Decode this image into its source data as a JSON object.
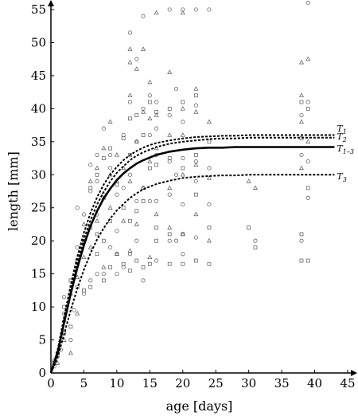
{
  "chart_data": {
    "type": "scatter",
    "title": "",
    "xlabel": "age [days]",
    "ylabel": "length [mm]",
    "xlim": [
      0,
      45
    ],
    "ylim": [
      0,
      55
    ],
    "xticks": [
      0,
      5,
      10,
      15,
      20,
      25,
      30,
      35,
      40,
      45
    ],
    "yticks": [
      0,
      5,
      10,
      15,
      20,
      25,
      30,
      35,
      40,
      45,
      50,
      55
    ],
    "grid": false,
    "legend": "none",
    "curves": [
      {
        "name": "T1",
        "asymptote": 36.0,
        "style": "dashed"
      },
      {
        "name": "T2",
        "asymptote": 35.6,
        "style": "dashed"
      },
      {
        "name": "T1-3",
        "asymptote": 34.2,
        "style": "solid"
      },
      {
        "name": "T3",
        "asymptote": 30.0,
        "style": "dashed"
      }
    ],
    "curve_points": {
      "x": [
        0,
        1,
        2,
        3,
        4,
        5,
        6,
        7,
        8,
        9,
        10,
        11,
        12,
        13,
        14,
        15,
        16,
        18,
        20,
        22,
        24,
        26,
        28,
        30,
        32,
        34,
        36,
        38,
        40,
        43
      ],
      "T1": [
        0,
        3.4,
        8.5,
        13.3,
        17.6,
        21.2,
        24.2,
        26.6,
        28.5,
        30.0,
        31.2,
        32.2,
        33.0,
        33.6,
        34.1,
        34.5,
        34.8,
        35.2,
        35.5,
        35.7,
        35.8,
        35.9,
        35.9,
        36.0,
        36.0,
        36.0,
        36.0,
        36.0,
        36.0,
        36.0
      ],
      "T2": [
        0,
        3.1,
        8.0,
        12.6,
        16.7,
        20.2,
        23.1,
        25.5,
        27.4,
        29.0,
        30.3,
        31.3,
        32.2,
        32.9,
        33.4,
        33.8,
        34.2,
        34.7,
        35.0,
        35.2,
        35.4,
        35.5,
        35.5,
        35.6,
        35.6,
        35.6,
        35.6,
        35.6,
        35.6,
        35.6
      ],
      "T1-3": [
        0,
        3.0,
        7.6,
        12.0,
        15.9,
        19.3,
        22.2,
        24.5,
        26.4,
        27.9,
        29.2,
        30.2,
        31.0,
        31.7,
        32.2,
        32.6,
        33.0,
        33.5,
        33.8,
        34.0,
        34.1,
        34.1,
        34.2,
        34.2,
        34.2,
        34.2,
        34.2,
        34.2,
        34.2,
        34.2
      ],
      "T3": [
        0,
        2.3,
        5.9,
        9.5,
        12.8,
        15.6,
        18.1,
        20.2,
        21.9,
        23.4,
        24.6,
        25.6,
        26.5,
        27.2,
        27.8,
        28.2,
        28.6,
        29.1,
        29.5,
        29.7,
        29.8,
        29.9,
        29.9,
        30.0,
        30.0,
        30.0,
        30.0,
        30.0,
        30.0,
        30.0
      ]
    },
    "series": [
      {
        "marker": "circle",
        "points": [
          [
            0.5,
            1
          ],
          [
            1,
            2.5
          ],
          [
            1.5,
            3.5
          ],
          [
            2,
            9
          ],
          [
            2,
            11.5
          ],
          [
            3,
            5
          ],
          [
            3.5,
            9.5
          ],
          [
            4,
            19
          ],
          [
            4,
            25
          ],
          [
            5,
            12
          ],
          [
            5,
            24
          ],
          [
            6,
            14
          ],
          [
            6,
            27.5
          ],
          [
            6,
            31.5
          ],
          [
            7,
            15
          ],
          [
            7,
            24
          ],
          [
            7,
            29
          ],
          [
            7,
            33
          ],
          [
            8,
            15
          ],
          [
            8,
            27
          ],
          [
            8,
            37
          ],
          [
            9,
            19
          ],
          [
            9,
            31
          ],
          [
            9,
            33
          ],
          [
            10,
            15
          ],
          [
            10,
            21.5
          ],
          [
            10,
            27
          ],
          [
            11,
            16
          ],
          [
            11,
            28
          ],
          [
            11,
            36
          ],
          [
            12,
            18
          ],
          [
            12,
            30
          ],
          [
            12,
            41
          ],
          [
            12,
            51.5
          ],
          [
            13,
            20
          ],
          [
            13,
            26
          ],
          [
            13,
            35
          ],
          [
            13,
            47.5
          ],
          [
            14,
            14
          ],
          [
            14,
            28
          ],
          [
            14,
            40
          ],
          [
            14,
            54
          ],
          [
            15,
            26
          ],
          [
            15,
            36
          ],
          [
            15,
            42
          ],
          [
            16,
            17
          ],
          [
            16,
            26
          ],
          [
            16,
            33
          ],
          [
            16,
            37
          ],
          [
            16,
            41
          ],
          [
            18,
            20
          ],
          [
            18,
            27
          ],
          [
            18,
            32
          ],
          [
            18,
            39
          ],
          [
            18,
            55
          ],
          [
            19,
            20
          ],
          [
            19,
            30
          ],
          [
            19,
            43
          ],
          [
            20,
            18
          ],
          [
            20,
            25.5
          ],
          [
            20,
            32.5
          ],
          [
            20,
            38
          ],
          [
            20,
            55
          ],
          [
            22,
            20.5
          ],
          [
            22,
            29
          ],
          [
            22,
            32
          ],
          [
            22,
            40.5
          ],
          [
            22,
            55
          ],
          [
            24,
            25.5
          ],
          [
            24,
            31
          ],
          [
            24,
            55
          ],
          [
            31,
            20
          ],
          [
            38,
            20
          ],
          [
            38,
            33
          ],
          [
            38,
            39
          ],
          [
            39,
            26.5
          ],
          [
            39,
            32
          ],
          [
            39,
            41
          ],
          [
            39,
            56
          ]
        ]
      },
      {
        "marker": "triangle",
        "points": [
          [
            0.5,
            2
          ],
          [
            1,
            1.5
          ],
          [
            2,
            5
          ],
          [
            2,
            8
          ],
          [
            3,
            3
          ],
          [
            3,
            12
          ],
          [
            4,
            9
          ],
          [
            4,
            14.5
          ],
          [
            5,
            17.5
          ],
          [
            5,
            22.5
          ],
          [
            6,
            19
          ],
          [
            6,
            29
          ],
          [
            7,
            23
          ],
          [
            7,
            31
          ],
          [
            8,
            16
          ],
          [
            8,
            26.5
          ],
          [
            8,
            34
          ],
          [
            9,
            25
          ],
          [
            9,
            30
          ],
          [
            9,
            38
          ],
          [
            10,
            18
          ],
          [
            10,
            29
          ],
          [
            10,
            33
          ],
          [
            11,
            23
          ],
          [
            11,
            31
          ],
          [
            12,
            18.5
          ],
          [
            12,
            29
          ],
          [
            12,
            42
          ],
          [
            12,
            47
          ],
          [
            12,
            49
          ],
          [
            13,
            22.5
          ],
          [
            13,
            35
          ],
          [
            13,
            46
          ],
          [
            14,
            28
          ],
          [
            14,
            39.5
          ],
          [
            14,
            49
          ],
          [
            15,
            17.5
          ],
          [
            15,
            32
          ],
          [
            15,
            38.5
          ],
          [
            15,
            44
          ],
          [
            16,
            24
          ],
          [
            16,
            34
          ],
          [
            16,
            39
          ],
          [
            16,
            54.5
          ],
          [
            18,
            22
          ],
          [
            18,
            28
          ],
          [
            18,
            36
          ],
          [
            18,
            45.5
          ],
          [
            20,
            21
          ],
          [
            20,
            30
          ],
          [
            20,
            36
          ],
          [
            20,
            40
          ],
          [
            20,
            54.5
          ],
          [
            22,
            24
          ],
          [
            22,
            31.5
          ],
          [
            22,
            39.5
          ],
          [
            22,
            43
          ],
          [
            24,
            20
          ],
          [
            24,
            29.5
          ],
          [
            24,
            38
          ],
          [
            30,
            29
          ],
          [
            31,
            28
          ],
          [
            38,
            31
          ],
          [
            38,
            38
          ],
          [
            38,
            42
          ],
          [
            38,
            47
          ],
          [
            39,
            35
          ],
          [
            39,
            47.5
          ]
        ]
      },
      {
        "marker": "square",
        "points": [
          [
            0.5,
            1.5
          ],
          [
            1,
            3
          ],
          [
            2,
            6
          ],
          [
            2,
            10
          ],
          [
            3,
            7
          ],
          [
            3,
            14
          ],
          [
            4,
            13
          ],
          [
            4,
            17
          ],
          [
            5,
            12.5
          ],
          [
            5,
            20
          ],
          [
            6,
            13
          ],
          [
            6,
            22
          ],
          [
            6,
            28
          ],
          [
            7,
            18
          ],
          [
            7,
            21
          ],
          [
            7,
            30
          ],
          [
            8,
            14
          ],
          [
            8,
            20
          ],
          [
            8,
            32.5
          ],
          [
            9,
            16
          ],
          [
            9,
            23
          ],
          [
            9,
            34
          ],
          [
            10,
            18
          ],
          [
            10,
            28.5
          ],
          [
            11,
            16.5
          ],
          [
            11,
            25
          ],
          [
            11,
            35.5
          ],
          [
            12,
            15.5
          ],
          [
            12,
            23
          ],
          [
            12,
            33
          ],
          [
            12,
            38.5
          ],
          [
            13,
            17
          ],
          [
            13,
            24.5
          ],
          [
            13,
            39
          ],
          [
            14,
            16
          ],
          [
            14,
            26
          ],
          [
            14,
            36
          ],
          [
            15,
            16.5
          ],
          [
            15,
            31
          ],
          [
            15,
            41
          ],
          [
            16,
            20
          ],
          [
            16,
            22
          ],
          [
            16,
            31.5
          ],
          [
            16,
            39.5
          ],
          [
            18,
            16.5
          ],
          [
            18,
            21
          ],
          [
            18,
            32.5
          ],
          [
            18,
            40
          ],
          [
            20,
            16.5
          ],
          [
            20,
            21
          ],
          [
            20,
            31
          ],
          [
            20,
            41
          ],
          [
            22,
            17
          ],
          [
            22,
            27
          ],
          [
            22,
            33
          ],
          [
            22,
            42
          ],
          [
            24,
            16.5
          ],
          [
            24,
            22
          ],
          [
            24,
            35
          ],
          [
            30,
            22
          ],
          [
            31,
            19
          ],
          [
            38,
            17
          ],
          [
            38,
            21
          ],
          [
            38,
            35.5
          ],
          [
            38,
            41
          ],
          [
            39,
            17
          ],
          [
            39,
            28
          ],
          [
            39,
            40
          ]
        ]
      }
    ]
  }
}
